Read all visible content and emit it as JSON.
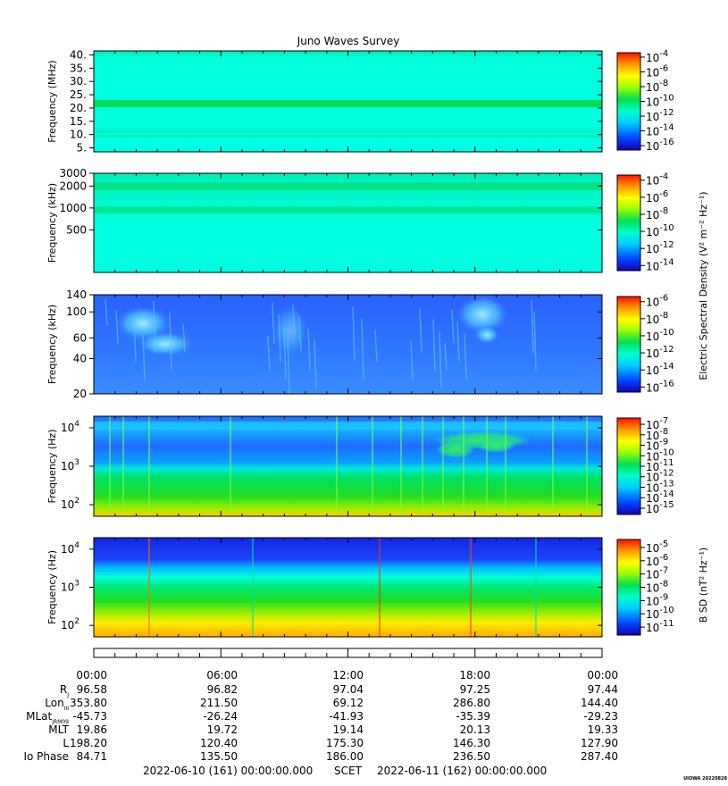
{
  "title": "Juno Waves Survey",
  "credit": "UIOWA 20220828",
  "time_footer": {
    "start": "2022-06-10 (161) 00:00:00.000",
    "scet": "SCET",
    "end": "2022-06-11 (162) 00:00:00.000"
  },
  "ephemeris": {
    "time_labels": [
      "00:00",
      "06:00",
      "12:00",
      "18:00",
      "00:00"
    ],
    "rows": [
      {
        "label": "R",
        "sub": "J",
        "values": [
          "96.58",
          "96.82",
          "97.04",
          "97.25",
          "97.44"
        ]
      },
      {
        "label": "Lon",
        "sub": "III",
        "values": [
          "353.80",
          "211.50",
          "69.12",
          "286.80",
          "144.40"
        ]
      },
      {
        "label": "MLat",
        "sub": "JRM09",
        "values": [
          "-45.73",
          "-26.24",
          "-41.93",
          "-35.39",
          "-29.23"
        ]
      },
      {
        "label": "MLT",
        "sub": "",
        "values": [
          "19.86",
          "19.72",
          "19.14",
          "20.13",
          "19.33"
        ]
      },
      {
        "label": "L",
        "sub": "",
        "values": [
          "198.20",
          "120.40",
          "175.30",
          "146.30",
          "127.90"
        ]
      },
      {
        "label": "Io Phase",
        "sub": "",
        "values": [
          "84.71",
          "135.50",
          "186.00",
          "236.50",
          "287.40"
        ]
      }
    ]
  },
  "colors": {
    "background": "#00ffdd",
    "low": "#2a5fff",
    "mid": "#00e04a",
    "high": "#ffcc00",
    "peak": "#ff2200"
  },
  "chart_data": [
    {
      "type": "heatmap",
      "panel": "HFR high band",
      "ylabel": "Frequency (MHz)",
      "yscale": "linear",
      "ylim": [
        3.5,
        41.5
      ],
      "yticks": [
        "5.",
        "10.",
        "15.",
        "20.",
        "25.",
        "30.",
        "35.",
        "40."
      ],
      "ytick_values": [
        5,
        10,
        15,
        20,
        25,
        30,
        35,
        40
      ],
      "xlim": [
        "2022-06-10T00:00",
        "2022-06-11T00:00"
      ],
      "colorbar": {
        "exponents": [
          "-4",
          "-6",
          "-8",
          "-10",
          "-12",
          "-14",
          "-16"
        ],
        "exponent_values": [
          -4,
          -6,
          -8,
          -10,
          -12,
          -14,
          -16
        ]
      },
      "features": [
        {
          "band": 20.8,
          "level": "green"
        }
      ]
    },
    {
      "type": "heatmap",
      "panel": "HFR low band",
      "ylabel": "Frequency (kHz)",
      "yscale": "log",
      "ylim": [
        130,
        3000
      ],
      "yticks": [
        "3000",
        "2000",
        "1000",
        "500"
      ],
      "ytick_values": [
        3000,
        2000,
        1000,
        500
      ],
      "colorbar": {
        "exponents": [
          "-4",
          "-6",
          "-8",
          "-10",
          "-12",
          "-14"
        ],
        "exponent_values": [
          -4,
          -6,
          -8,
          -10,
          -12,
          -14
        ],
        "label": "Electric Spectral Density (V² m⁻² Hz⁻¹)"
      },
      "features": [
        {
          "band": 1950,
          "level": "green"
        },
        {
          "band": 980,
          "level": "green"
        }
      ]
    },
    {
      "type": "heatmap",
      "panel": "LFR E",
      "ylabel": "Frequency (kHz)",
      "yscale": "log",
      "ylim": [
        20,
        140
      ],
      "yticks": [
        "140",
        "100",
        "60",
        "40",
        "20"
      ],
      "ytick_values": [
        140,
        100,
        60,
        40,
        20
      ],
      "colorbar": {
        "exponents": [
          "-6",
          "-8",
          "-10",
          "-12",
          "-14",
          "-16"
        ],
        "exponent_values": [
          -6,
          -8,
          -10,
          -12,
          -14,
          -16
        ]
      }
    },
    {
      "type": "heatmap",
      "panel": "Low-frequency E",
      "ylabel": "Frequency (Hz)",
      "yscale": "log",
      "ylim": [
        50,
        20000
      ],
      "yticks": [
        "10",
        "10",
        "10"
      ],
      "ytick_exponents": [
        "4",
        "3",
        "2"
      ],
      "ytick_values": [
        10000,
        1000,
        100
      ],
      "colorbar": {
        "exponents": [
          "-7",
          "-8",
          "-9",
          "-10",
          "-11",
          "-12",
          "-13",
          "-14",
          "-15"
        ],
        "exponent_values": [
          -7,
          -8,
          -9,
          -10,
          -11,
          -12,
          -13,
          -14,
          -15
        ]
      }
    },
    {
      "type": "heatmap",
      "panel": "Low-frequency B",
      "ylabel": "Frequency (Hz)",
      "yscale": "log",
      "ylim": [
        50,
        20000
      ],
      "yticks": [
        "10",
        "10",
        "10"
      ],
      "ytick_exponents": [
        "4",
        "3",
        "2"
      ],
      "ytick_values": [
        10000,
        1000,
        100
      ],
      "colorbar": {
        "exponents": [
          "-5",
          "-6",
          "-7",
          "-8",
          "-9",
          "-10",
          "-11"
        ],
        "exponent_values": [
          -5,
          -6,
          -7,
          -8,
          -9,
          -10,
          -11
        ],
        "label": "B SD (nT² Hz⁻¹)"
      }
    }
  ]
}
